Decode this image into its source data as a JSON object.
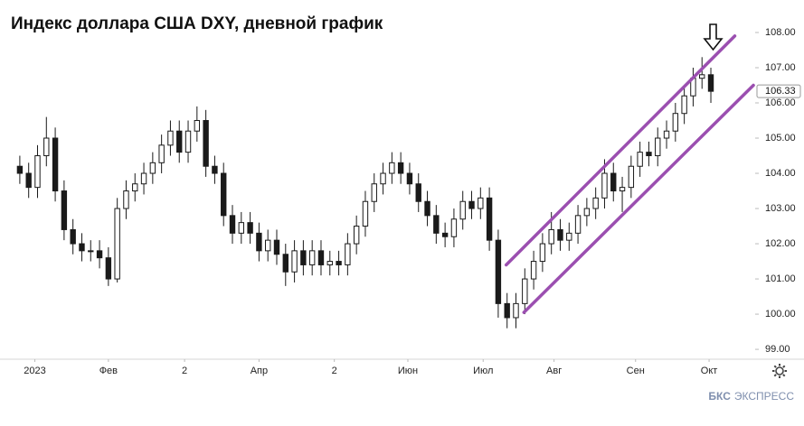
{
  "chart_data": {
    "type": "candlestick",
    "title": "Индекс доллара США DXY, дневной график",
    "open": [
      104.2,
      104.0,
      103.6,
      104.5,
      105.0,
      103.5,
      102.4,
      102.0,
      101.8,
      101.8,
      101.6,
      101.0,
      103.0,
      103.5,
      103.7,
      104.0,
      104.3,
      104.8,
      105.2,
      104.6,
      105.2,
      105.5,
      104.2,
      104.0,
      102.8,
      102.3,
      102.6,
      102.3,
      101.8,
      102.1,
      101.7,
      101.2,
      101.8,
      101.4,
      101.8,
      101.4,
      101.5,
      101.4,
      102.0,
      102.5,
      103.2,
      103.7,
      104.0,
      104.3,
      104.0,
      103.7,
      103.2,
      102.8,
      102.3,
      102.2,
      102.7,
      103.2,
      103.0,
      103.3,
      102.1,
      100.3,
      99.9,
      100.3,
      101.0,
      101.5,
      102.0,
      102.4,
      102.1,
      102.3,
      102.8,
      103.0,
      103.3,
      104.0,
      103.5,
      103.6,
      104.2,
      104.6,
      104.5,
      105.0,
      105.2,
      105.7,
      106.2,
      106.7,
      106.8
    ],
    "high": [
      104.5,
      104.3,
      104.8,
      105.6,
      105.3,
      103.8,
      102.7,
      102.3,
      102.1,
      102.1,
      101.9,
      103.3,
      103.8,
      104.0,
      104.3,
      104.6,
      105.1,
      105.5,
      105.5,
      105.5,
      105.9,
      105.8,
      104.5,
      104.3,
      103.1,
      102.9,
      102.9,
      102.6,
      102.4,
      102.4,
      102.0,
      102.1,
      102.1,
      102.1,
      102.1,
      101.8,
      101.8,
      102.3,
      102.8,
      103.5,
      104.0,
      104.3,
      104.6,
      104.6,
      104.3,
      104.0,
      103.5,
      103.1,
      102.6,
      103.0,
      103.5,
      103.5,
      103.6,
      103.6,
      102.4,
      100.6,
      100.6,
      101.3,
      101.8,
      102.3,
      102.9,
      102.7,
      102.6,
      103.1,
      103.3,
      103.6,
      104.4,
      104.3,
      103.9,
      104.5,
      104.9,
      104.9,
      105.3,
      105.5,
      106.0,
      106.5,
      107.0,
      107.3,
      107.0
    ],
    "low": [
      103.7,
      103.3,
      103.3,
      104.2,
      103.2,
      102.1,
      101.7,
      101.5,
      101.5,
      101.3,
      100.8,
      100.9,
      102.7,
      103.2,
      103.4,
      103.7,
      104.0,
      104.5,
      104.3,
      104.3,
      104.9,
      103.9,
      103.7,
      102.5,
      102.0,
      102.0,
      102.0,
      101.5,
      101.5,
      101.4,
      100.8,
      100.9,
      101.1,
      101.1,
      101.1,
      101.1,
      101.1,
      101.1,
      101.7,
      102.2,
      102.9,
      103.4,
      103.7,
      103.7,
      103.4,
      102.9,
      102.5,
      102.0,
      101.9,
      101.9,
      102.4,
      102.7,
      102.7,
      101.8,
      99.9,
      99.6,
      99.6,
      100.0,
      100.7,
      101.2,
      101.7,
      101.8,
      101.8,
      102.0,
      102.5,
      102.7,
      103.0,
      103.2,
      102.9,
      103.3,
      103.9,
      104.2,
      104.2,
      104.7,
      104.9,
      105.4,
      105.9,
      106.4,
      106.0
    ],
    "close": [
      104.0,
      103.6,
      104.5,
      105.0,
      103.5,
      102.4,
      102.0,
      101.8,
      101.8,
      101.6,
      101.0,
      103.0,
      103.5,
      103.7,
      104.0,
      104.3,
      104.8,
      105.2,
      104.6,
      105.2,
      105.5,
      104.2,
      104.0,
      102.8,
      102.3,
      102.6,
      102.3,
      101.8,
      102.1,
      101.7,
      101.2,
      101.8,
      101.4,
      101.8,
      101.4,
      101.5,
      101.4,
      102.0,
      102.5,
      103.2,
      103.7,
      104.0,
      104.3,
      104.0,
      103.7,
      103.2,
      102.8,
      102.3,
      102.2,
      102.7,
      103.2,
      103.0,
      103.3,
      102.1,
      100.3,
      99.9,
      100.3,
      101.0,
      101.5,
      102.0,
      102.4,
      102.1,
      102.3,
      102.8,
      103.0,
      103.3,
      104.0,
      103.5,
      103.6,
      104.2,
      104.6,
      104.5,
      105.0,
      105.2,
      105.7,
      106.2,
      106.7,
      106.8,
      106.33
    ],
    "color": "#1a1a1a",
    "xlim": [
      -0.5,
      83
    ],
    "xticks": [
      {
        "value": 1.7,
        "label": "2023"
      },
      {
        "value": 10,
        "label": "Фев"
      },
      {
        "value": 18.6,
        "label": "2"
      },
      {
        "value": 27,
        "label": "Апр"
      },
      {
        "value": 35.5,
        "label": "2"
      },
      {
        "value": 43.8,
        "label": "Июн"
      },
      {
        "value": 52.3,
        "label": "Июл"
      },
      {
        "value": 60.3,
        "label": "Авг"
      },
      {
        "value": 69.5,
        "label": "Сен"
      },
      {
        "value": 77.8,
        "label": "Окт"
      }
    ],
    "ylim": [
      98.72,
      108.41
    ],
    "yticks": [
      {
        "value": 99,
        "label": "99.00"
      },
      {
        "value": 100,
        "label": "100.00"
      },
      {
        "value": 101,
        "label": "101.00"
      },
      {
        "value": 102,
        "label": "102.00"
      },
      {
        "value": 103,
        "label": "103.00"
      },
      {
        "value": 104,
        "label": "104.00"
      },
      {
        "value": 105,
        "label": "105.00"
      },
      {
        "value": 106,
        "label": "106.00"
      },
      {
        "value": 107,
        "label": "107.00"
      },
      {
        "value": 108,
        "label": "108.00"
      }
    ],
    "grid": false,
    "trend_lines": [
      {
        "color": "#9b4fb0",
        "x": [
          54.9,
          80.7
        ],
        "y": [
          101.4,
          107.9
        ]
      },
      {
        "color": "#9b4fb0",
        "x": [
          56.9,
          82.8
        ],
        "y": [
          100.05,
          106.5
        ]
      }
    ]
  },
  "footer": {
    "brand": "БКС",
    "product": "ЭКСПРЕСС"
  }
}
